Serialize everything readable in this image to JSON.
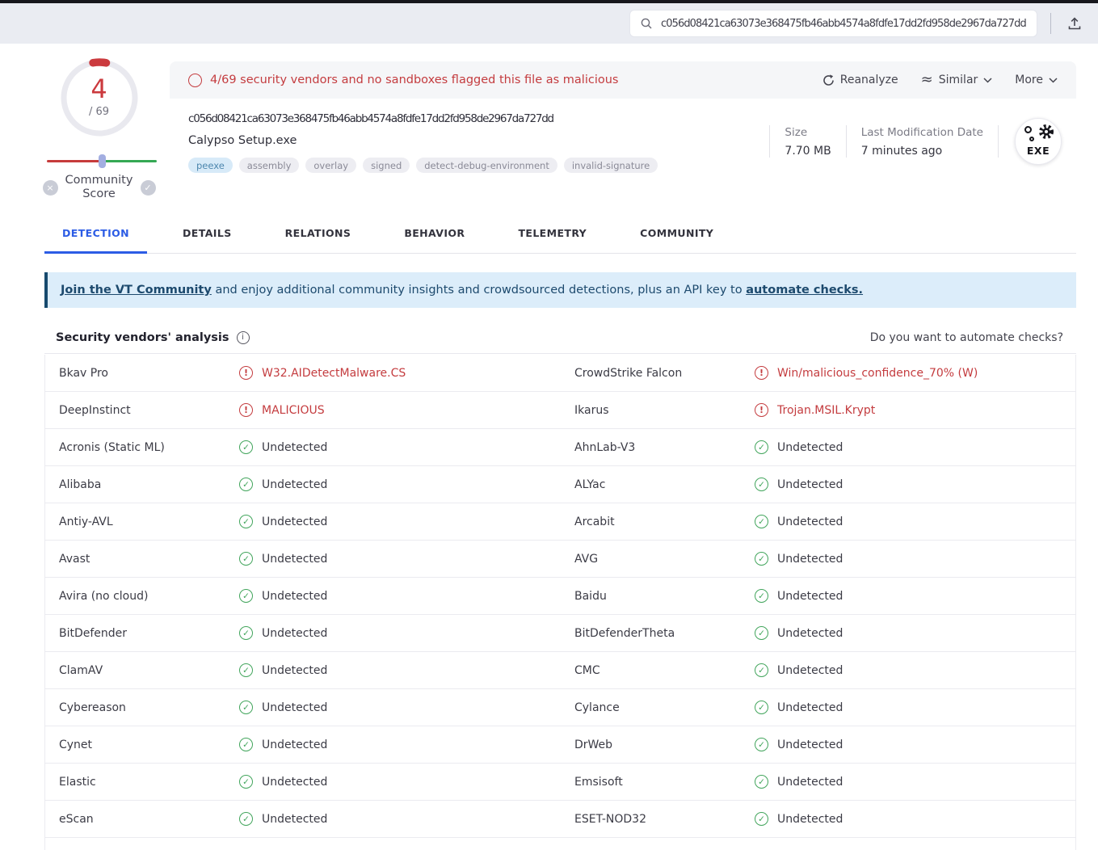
{
  "header": {
    "search_value": "c056d08421ca63073e368475fb46abb4574a8fdfe17dd2fd958de2967da727dd"
  },
  "score": {
    "value": "4",
    "total": "/ 69",
    "community_label": "Community Score"
  },
  "file_card": {
    "warning": "4/69 security vendors and no sandboxes flagged this file as malicious",
    "actions": {
      "reanalyze": "Reanalyze",
      "similar": "Similar",
      "more": "More"
    },
    "hash": "c056d08421ca63073e368475fb46abb4574a8fdfe17dd2fd958de2967da727dd",
    "filename": "Calypso Setup.exe",
    "tags": [
      {
        "label": "peexe",
        "variant": "blue"
      },
      {
        "label": "assembly",
        "variant": "gray"
      },
      {
        "label": "overlay",
        "variant": "gray"
      },
      {
        "label": "signed",
        "variant": "gray"
      },
      {
        "label": "detect-debug-environment",
        "variant": "gray"
      },
      {
        "label": "invalid-signature",
        "variant": "gray"
      }
    ],
    "size_label": "Size",
    "size_value": "7.70 MB",
    "date_label": "Last Modification Date",
    "date_value": "7 minutes ago",
    "filetype_badge": "EXE"
  },
  "tabs": [
    {
      "label": "DETECTION",
      "active": true
    },
    {
      "label": "DETAILS",
      "active": false
    },
    {
      "label": "RELATIONS",
      "active": false
    },
    {
      "label": "BEHAVIOR",
      "active": false
    },
    {
      "label": "TELEMETRY",
      "active": false
    },
    {
      "label": "COMMUNITY",
      "active": false
    }
  ],
  "community_banner": {
    "link1": "Join the VT Community",
    "middle": " and enjoy additional community insights and crowdsourced detections, plus an API key to ",
    "link2": "automate checks."
  },
  "analysis": {
    "title": "Security vendors' analysis",
    "automate_prompt": "Do you want to automate checks?",
    "rows": [
      {
        "l": {
          "vendor": "Bkav Pro",
          "result": "W32.AIDetectMalware.CS",
          "status": "malicious"
        },
        "r": {
          "vendor": "CrowdStrike Falcon",
          "result": "Win/malicious_confidence_70% (W)",
          "status": "malicious"
        }
      },
      {
        "l": {
          "vendor": "DeepInstinct",
          "result": "MALICIOUS",
          "status": "malicious"
        },
        "r": {
          "vendor": "Ikarus",
          "result": "Trojan.MSIL.Krypt",
          "status": "malicious"
        }
      },
      {
        "l": {
          "vendor": "Acronis (Static ML)",
          "result": "Undetected",
          "status": "undetected"
        },
        "r": {
          "vendor": "AhnLab-V3",
          "result": "Undetected",
          "status": "undetected"
        }
      },
      {
        "l": {
          "vendor": "Alibaba",
          "result": "Undetected",
          "status": "undetected"
        },
        "r": {
          "vendor": "ALYac",
          "result": "Undetected",
          "status": "undetected"
        }
      },
      {
        "l": {
          "vendor": "Antiy-AVL",
          "result": "Undetected",
          "status": "undetected"
        },
        "r": {
          "vendor": "Arcabit",
          "result": "Undetected",
          "status": "undetected"
        }
      },
      {
        "l": {
          "vendor": "Avast",
          "result": "Undetected",
          "status": "undetected"
        },
        "r": {
          "vendor": "AVG",
          "result": "Undetected",
          "status": "undetected"
        }
      },
      {
        "l": {
          "vendor": "Avira (no cloud)",
          "result": "Undetected",
          "status": "undetected"
        },
        "r": {
          "vendor": "Baidu",
          "result": "Undetected",
          "status": "undetected"
        }
      },
      {
        "l": {
          "vendor": "BitDefender",
          "result": "Undetected",
          "status": "undetected"
        },
        "r": {
          "vendor": "BitDefenderTheta",
          "result": "Undetected",
          "status": "undetected"
        }
      },
      {
        "l": {
          "vendor": "ClamAV",
          "result": "Undetected",
          "status": "undetected"
        },
        "r": {
          "vendor": "CMC",
          "result": "Undetected",
          "status": "undetected"
        }
      },
      {
        "l": {
          "vendor": "Cybereason",
          "result": "Undetected",
          "status": "undetected"
        },
        "r": {
          "vendor": "Cylance",
          "result": "Undetected",
          "status": "undetected"
        }
      },
      {
        "l": {
          "vendor": "Cynet",
          "result": "Undetected",
          "status": "undetected"
        },
        "r": {
          "vendor": "DrWeb",
          "result": "Undetected",
          "status": "undetected"
        }
      },
      {
        "l": {
          "vendor": "Elastic",
          "result": "Undetected",
          "status": "undetected"
        },
        "r": {
          "vendor": "Emsisoft",
          "result": "Undetected",
          "status": "undetected"
        }
      },
      {
        "l": {
          "vendor": "eScan",
          "result": "Undetected",
          "status": "undetected"
        },
        "r": {
          "vendor": "ESET-NOD32",
          "result": "Undetected",
          "status": "undetected"
        }
      }
    ]
  },
  "colors": {
    "accent_blue": "#2c5ce5",
    "malicious_red": "#c43c3f",
    "undetected_green": "#42a55c",
    "score_red": "#cb3a3e",
    "banner_bg": "#dcedfa",
    "banner_text": "#1d4a6e"
  }
}
